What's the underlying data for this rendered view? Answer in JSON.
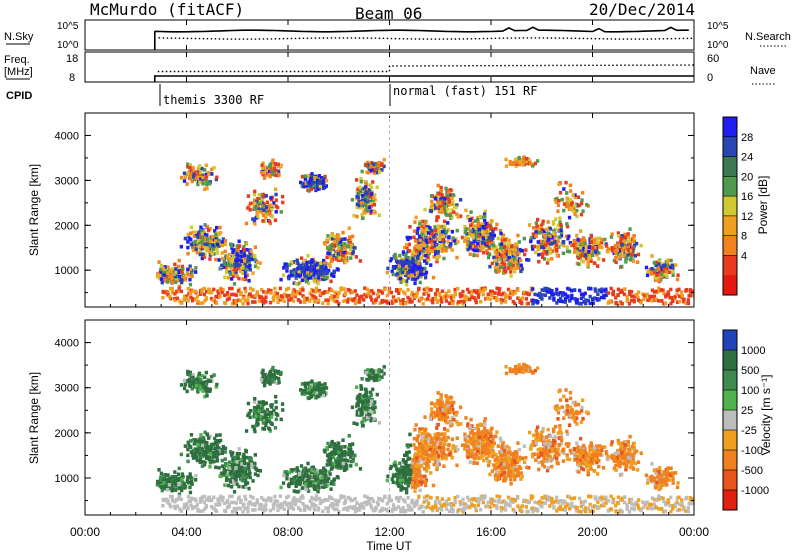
{
  "header": {
    "station": "McMurdo (fitACF)",
    "beam": "Beam 06",
    "date": "20/Dec/2014"
  },
  "top_panels": {
    "nsky_label": "N.Sky",
    "nsky_ticks": [
      "10^5",
      "10^0"
    ],
    "nsearch_label": "N.Search",
    "nsearch_ticks": [
      "10^5",
      "10^0"
    ],
    "freq_label_1": "Freq.",
    "freq_label_2": "[MHz]",
    "freq_ticks": [
      "18",
      "8"
    ],
    "nave_label": "Nave",
    "nave_ticks": [
      "60",
      "0"
    ],
    "cpid_label": "CPID",
    "cpid_mode_1": "themis 3300 RF",
    "cpid_mode_2": "normal (fast) 151 RF"
  },
  "chart_data": [
    {
      "type": "heatmap",
      "name": "power-panel",
      "ylabel": "Slant Range [km]",
      "yticks": [
        "1000",
        "2000",
        "3000",
        "4000"
      ],
      "ylim": [
        180,
        4500
      ],
      "colorbar_label": "Power [dB]",
      "colorbar_ticks": [
        "4",
        "8",
        "12",
        "16",
        "20",
        "24",
        "28"
      ],
      "colors": [
        "#1e1ef0",
        "#2a46b4",
        "#3c7850",
        "#509a50",
        "#d2c834",
        "#f0a020",
        "#f08220",
        "#e83a1e",
        "#e41a12"
      ]
    },
    {
      "type": "heatmap",
      "name": "velocity-panel",
      "ylabel": "Slant Range [km]",
      "yticks": [
        "1000",
        "2000",
        "3000",
        "4000"
      ],
      "ylim": [
        180,
        4500
      ],
      "colorbar_label": "Velocity [m s⁻¹]",
      "colorbar_ticks": [
        "1000",
        "500",
        "100",
        "25",
        "-25",
        "-100",
        "-500",
        "-1000"
      ],
      "colors": [
        "#2244bb",
        "#2f6f3f",
        "#3e8a4e",
        "#4fb24f",
        "#bdbdbd",
        "#f0a020",
        "#f08020",
        "#e8551c",
        "#e02010"
      ]
    }
  ],
  "xaxis": {
    "ticks": [
      "00:00",
      "04:00",
      "08:00",
      "12:00",
      "16:00",
      "20:00",
      "00:00"
    ],
    "label": "Time UT"
  }
}
